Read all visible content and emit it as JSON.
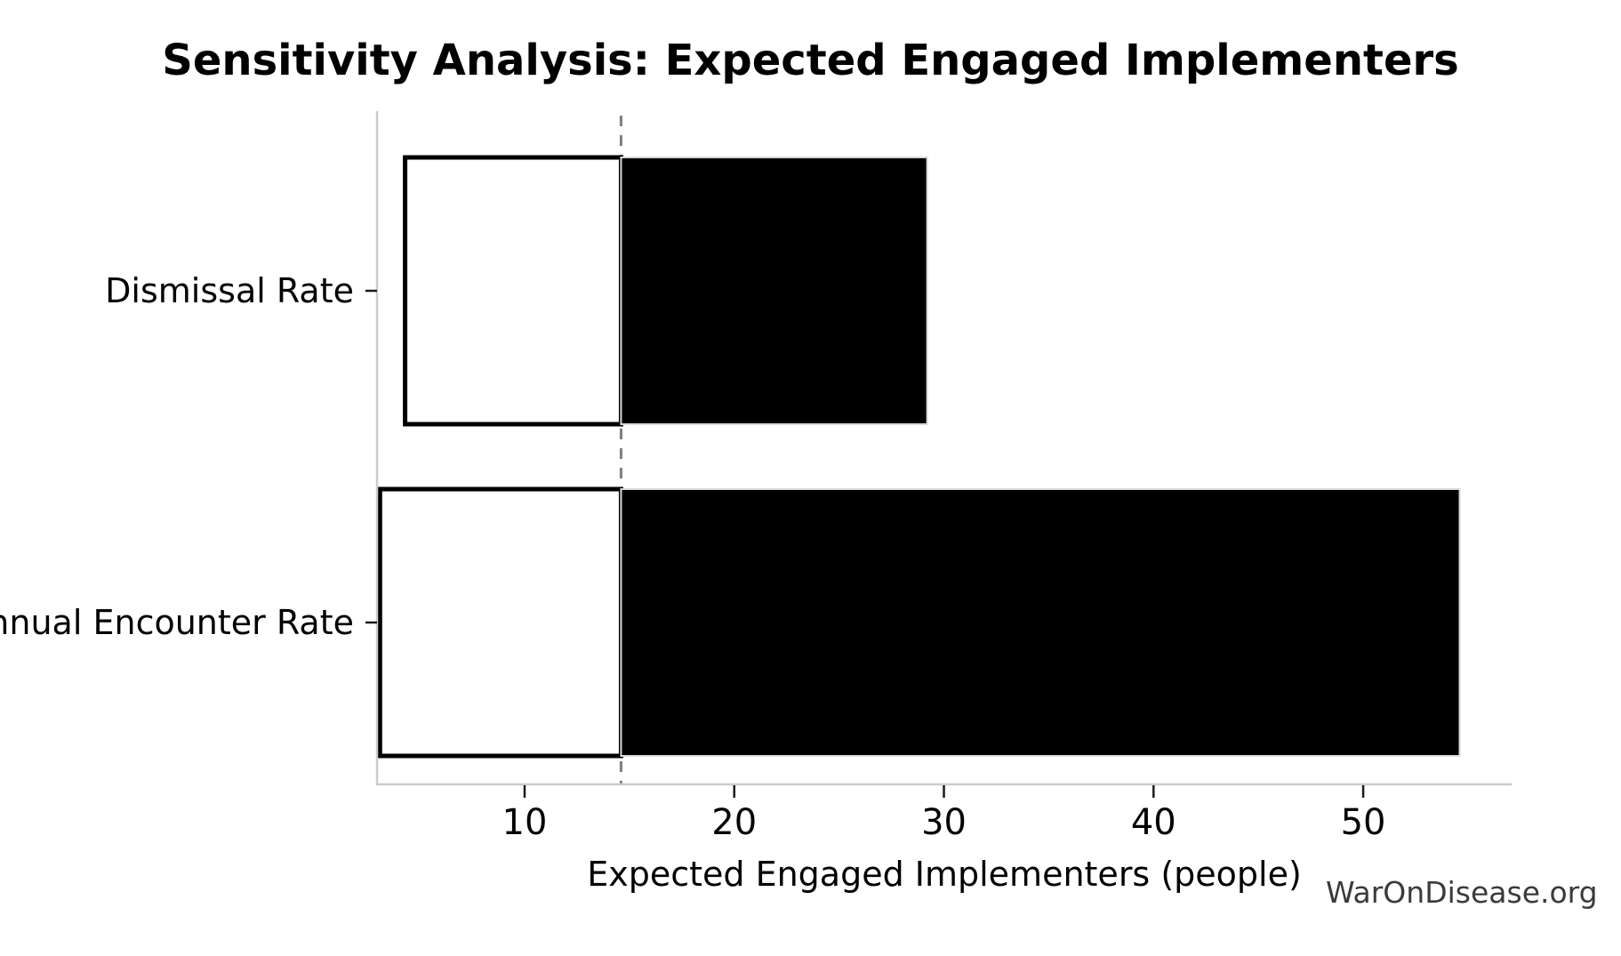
{
  "chart_data": {
    "type": "bar",
    "subtype": "tornado-sensitivity",
    "orientation": "horizontal",
    "title": "Sensitivity Analysis: Expected Engaged Implementers",
    "xlabel": "Expected Engaged Implementers (people)",
    "ylabel": "",
    "categories": [
      "Dismissal Rate",
      "Annual Encounter Rate"
    ],
    "bars": [
      {
        "label": "Dismissal Rate",
        "low": 4.3,
        "high": 29.2
      },
      {
        "label": "Annual Encounter Rate",
        "low": 3.1,
        "high": 54.6
      }
    ],
    "baseline": 14.6,
    "x_ticks": [
      10,
      20,
      30,
      40,
      50
    ],
    "xlim": [
      2.96,
      57.08
    ],
    "grid": false,
    "legend": false,
    "colors": {
      "bar_low_fill": "#ffffff",
      "bar_low_edge": "#000000",
      "bar_high_fill": "#000000",
      "bar_high_edge": "#d9d9d9",
      "baseline_line": "#7f7f7f",
      "spine": "#cccccc",
      "tick": "#1a1a1a",
      "text": "#000000"
    }
  },
  "watermark": {
    "text": "WarOnDisease.org",
    "color": "#3a3a3a"
  }
}
